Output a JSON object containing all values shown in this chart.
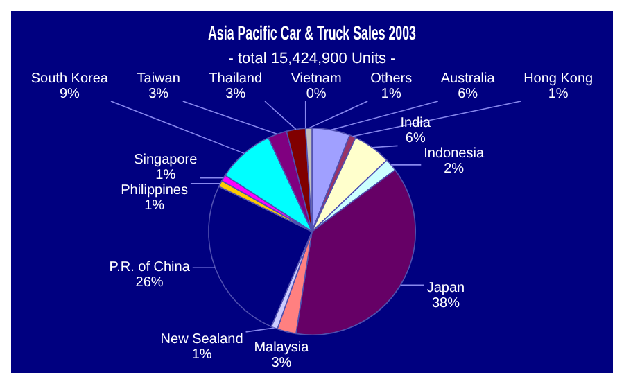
{
  "chart_data": {
    "type": "pie",
    "title": "Asia Pacific Car & Truck Sales 2003",
    "subtitle": "- total 15,424,900 Units -",
    "categories": [
      "Australia",
      "Hong Kong",
      "India",
      "Indonesia",
      "Japan",
      "Malaysia",
      "New Sealand",
      "P.R. of China",
      "Philippines",
      "Singapore",
      "South Korea",
      "Taiwan",
      "Thailand",
      "Vietnam",
      "Others"
    ],
    "values": [
      6,
      1,
      6,
      2,
      38,
      3,
      1,
      26,
      1,
      1,
      9,
      3,
      3,
      0,
      1
    ],
    "value_labels": [
      "6%",
      "1%",
      "6%",
      "2%",
      "38%",
      "3%",
      "1%",
      "26%",
      "1%",
      "1%",
      "9%",
      "3%",
      "3%",
      "0%",
      "1%"
    ],
    "colors": [
      "#a0a0ff",
      "#993366",
      "#ffffcc",
      "#ccffff",
      "#660066",
      "#ff8080",
      "#ccccff",
      "#000080",
      "#ffcc00",
      "#ff00ff",
      "#00ffff",
      "#800080",
      "#800000",
      "#0000ff",
      "#c0c0c0"
    ]
  }
}
